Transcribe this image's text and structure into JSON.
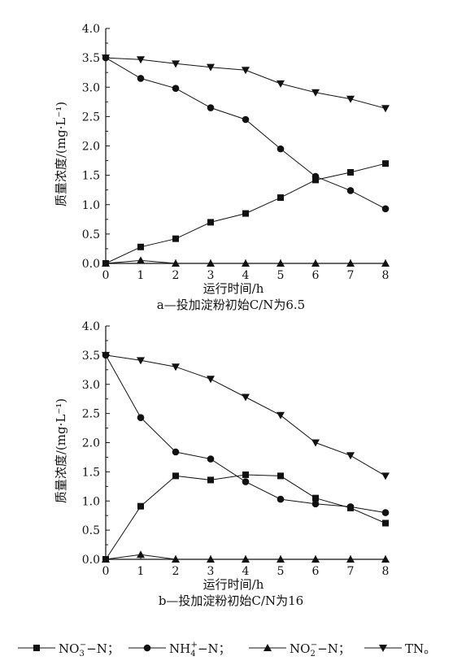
{
  "chart_data": [
    {
      "type": "line",
      "caption": "a—投加淀粉初始C/N为6.5",
      "xlabel": "运行时间/h",
      "ylabel": "质量浓度/(mg·L⁻¹)",
      "x": [
        0,
        1,
        2,
        3,
        4,
        5,
        6,
        7,
        8
      ],
      "xlim": [
        0,
        8
      ],
      "ylim": [
        0,
        4.0
      ],
      "xticks": [
        "0",
        "1",
        "2",
        "3",
        "4",
        "5",
        "6",
        "7",
        "8"
      ],
      "yticks": [
        "0.0",
        "0.5",
        "1.0",
        "1.5",
        "2.0",
        "2.5",
        "3.0",
        "3.5",
        "4.0"
      ],
      "grid": false,
      "series": [
        {
          "key": "no3",
          "values": [
            0.0,
            0.28,
            0.42,
            0.7,
            0.85,
            1.12,
            1.42,
            1.55,
            1.7
          ]
        },
        {
          "key": "nh4",
          "values": [
            3.5,
            3.15,
            2.98,
            2.65,
            2.45,
            1.95,
            1.48,
            1.24,
            0.93
          ]
        },
        {
          "key": "no2",
          "values": [
            0.0,
            0.05,
            0.0,
            0.0,
            0.0,
            0.0,
            0.0,
            0.0,
            0.0
          ]
        },
        {
          "key": "tn",
          "values": [
            3.5,
            3.47,
            3.4,
            3.34,
            3.29,
            3.06,
            2.91,
            2.8,
            2.64
          ]
        }
      ]
    },
    {
      "type": "line",
      "caption": "b—投加淀粉初始C/N为16",
      "xlabel": "运行时间/h",
      "ylabel": "质量浓度/(mg·L⁻¹)",
      "x": [
        0,
        1,
        2,
        3,
        4,
        5,
        6,
        7,
        8
      ],
      "xlim": [
        0,
        8
      ],
      "ylim": [
        0,
        4.0
      ],
      "xticks": [
        "0",
        "1",
        "2",
        "3",
        "4",
        "5",
        "6",
        "7",
        "8"
      ],
      "yticks": [
        "0.0",
        "0.5",
        "1.0",
        "1.5",
        "2.0",
        "2.5",
        "3.0",
        "3.5",
        "4.0"
      ],
      "grid": false,
      "series": [
        {
          "key": "no3",
          "values": [
            0.0,
            0.91,
            1.43,
            1.36,
            1.45,
            1.43,
            1.05,
            0.88,
            0.62
          ]
        },
        {
          "key": "nh4",
          "values": [
            3.5,
            2.43,
            1.84,
            1.72,
            1.33,
            1.03,
            0.95,
            0.9,
            0.8
          ]
        },
        {
          "key": "no2",
          "values": [
            0.0,
            0.08,
            0.0,
            0.0,
            0.0,
            0.0,
            0.0,
            0.0,
            0.0
          ]
        },
        {
          "key": "tn",
          "values": [
            3.5,
            3.41,
            3.3,
            3.09,
            2.78,
            2.47,
            2.0,
            1.78,
            1.43
          ]
        }
      ]
    }
  ],
  "legend": {
    "placement": "bottom",
    "entries": [
      {
        "key": "no3",
        "marker": "square",
        "base": "NO",
        "sub": "3",
        "sup": "−",
        "tail": "−N；"
      },
      {
        "key": "nh4",
        "marker": "circle",
        "base": "NH",
        "sub": "4",
        "sup": "+",
        "tail": "−N；"
      },
      {
        "key": "no2",
        "marker": "triangle-up",
        "base": "NO",
        "sub": "2",
        "sup": "−",
        "tail": "−N；"
      },
      {
        "key": "tn",
        "marker": "triangle-down",
        "base": "TN",
        "sub": "",
        "sup": "",
        "tail": "。"
      }
    ]
  }
}
